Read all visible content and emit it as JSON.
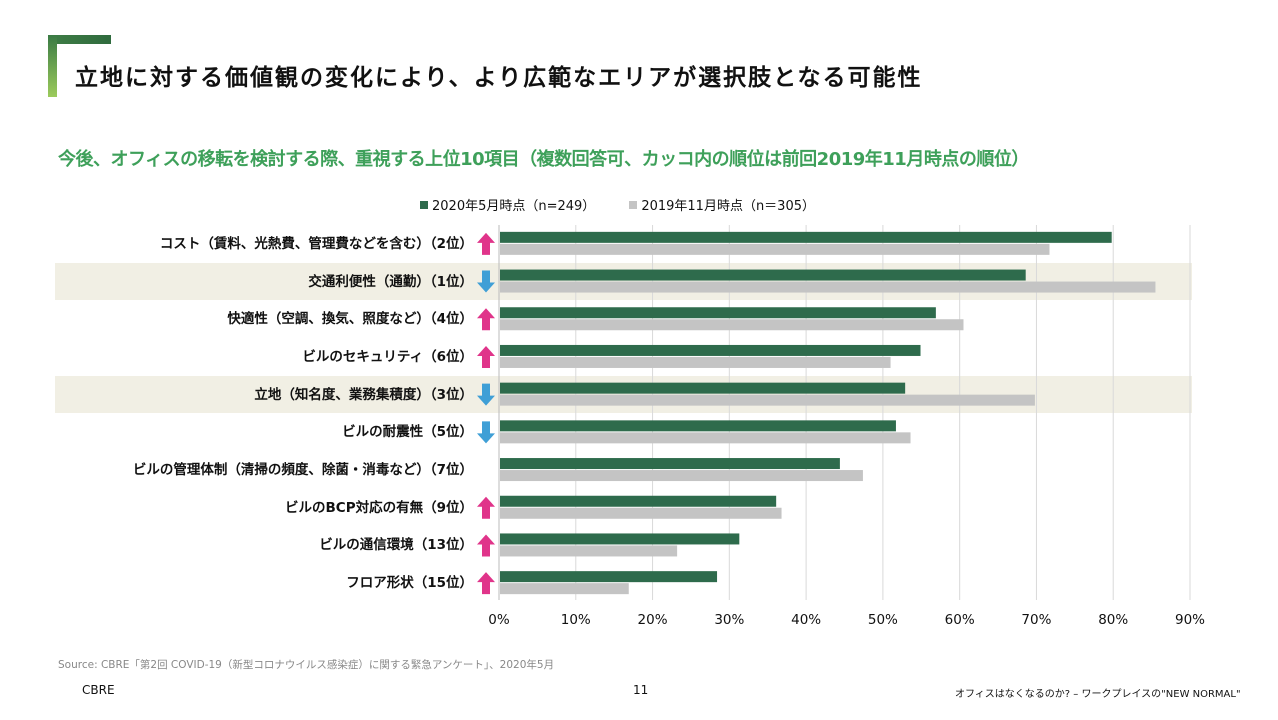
{
  "slide": {
    "title": "立地に対する価値観の変化により、より広範なエリアが選択肢となる可能性",
    "subtitle": "今後、オフィスの移転を検討する際、重視する上位10項目（複数回答可、カッコ内の順位は前回2019年11月時点の順位）",
    "source": "Source: CBRE「第2回 COVID-19（新型コロナウイルス感染症）に関する緊急アンケート」、2020年5月",
    "footer_brand": "CBRE",
    "page_number": "11",
    "footer_title": "オフィスはなくなるのか? – ワークプレイスの\"NEW NORMAL\""
  },
  "colors": {
    "series_2020": "#2e6b4c",
    "series_2019": "#c4c4c4",
    "up_arrow": "#e0348a",
    "down_arrow": "#3f9fd6",
    "highlight_band": "#f1efe4",
    "subtitle": "#3ea05a"
  },
  "chart_data": {
    "type": "bar",
    "orientation": "horizontal",
    "categories": [
      "コスト（賃料、光熱費、管理費などを含む）（2位）",
      "交通利便性（通勤）（1位）",
      "快適性（空調、換気、照度など）（4位）",
      "ビルのセキュリティ（6位）",
      "立地（知名度、業務集積度）（3位）",
      "ビルの耐震性（5位）",
      "ビルの管理体制（清掃の頻度、除菌・消毒など）（7位）",
      "ビルのBCP対応の有無（9位）",
      "ビルの通信環境（13位）",
      "フロア形状（15位）"
    ],
    "rank_change": [
      "up",
      "down",
      "up",
      "up",
      "down",
      "down",
      "none",
      "up",
      "up",
      "up"
    ],
    "highlighted_rows": [
      1,
      4
    ],
    "series": [
      {
        "name": "2020年5月時点（n=249）",
        "values": [
          79.8,
          68.6,
          56.9,
          54.9,
          52.9,
          51.7,
          44.4,
          36.1,
          31.3,
          28.4
        ]
      },
      {
        "name": "2019年11月時点（n＝305）",
        "values": [
          71.7,
          85.5,
          60.5,
          51.0,
          69.8,
          53.6,
          47.4,
          36.8,
          23.2,
          16.9
        ]
      }
    ],
    "xlim": [
      0,
      90
    ],
    "xticks": [
      "0%",
      "10%",
      "20%",
      "30%",
      "40%",
      "50%",
      "60%",
      "70%",
      "80%",
      "90%"
    ],
    "grid": "vertical",
    "legend_position": "top"
  }
}
